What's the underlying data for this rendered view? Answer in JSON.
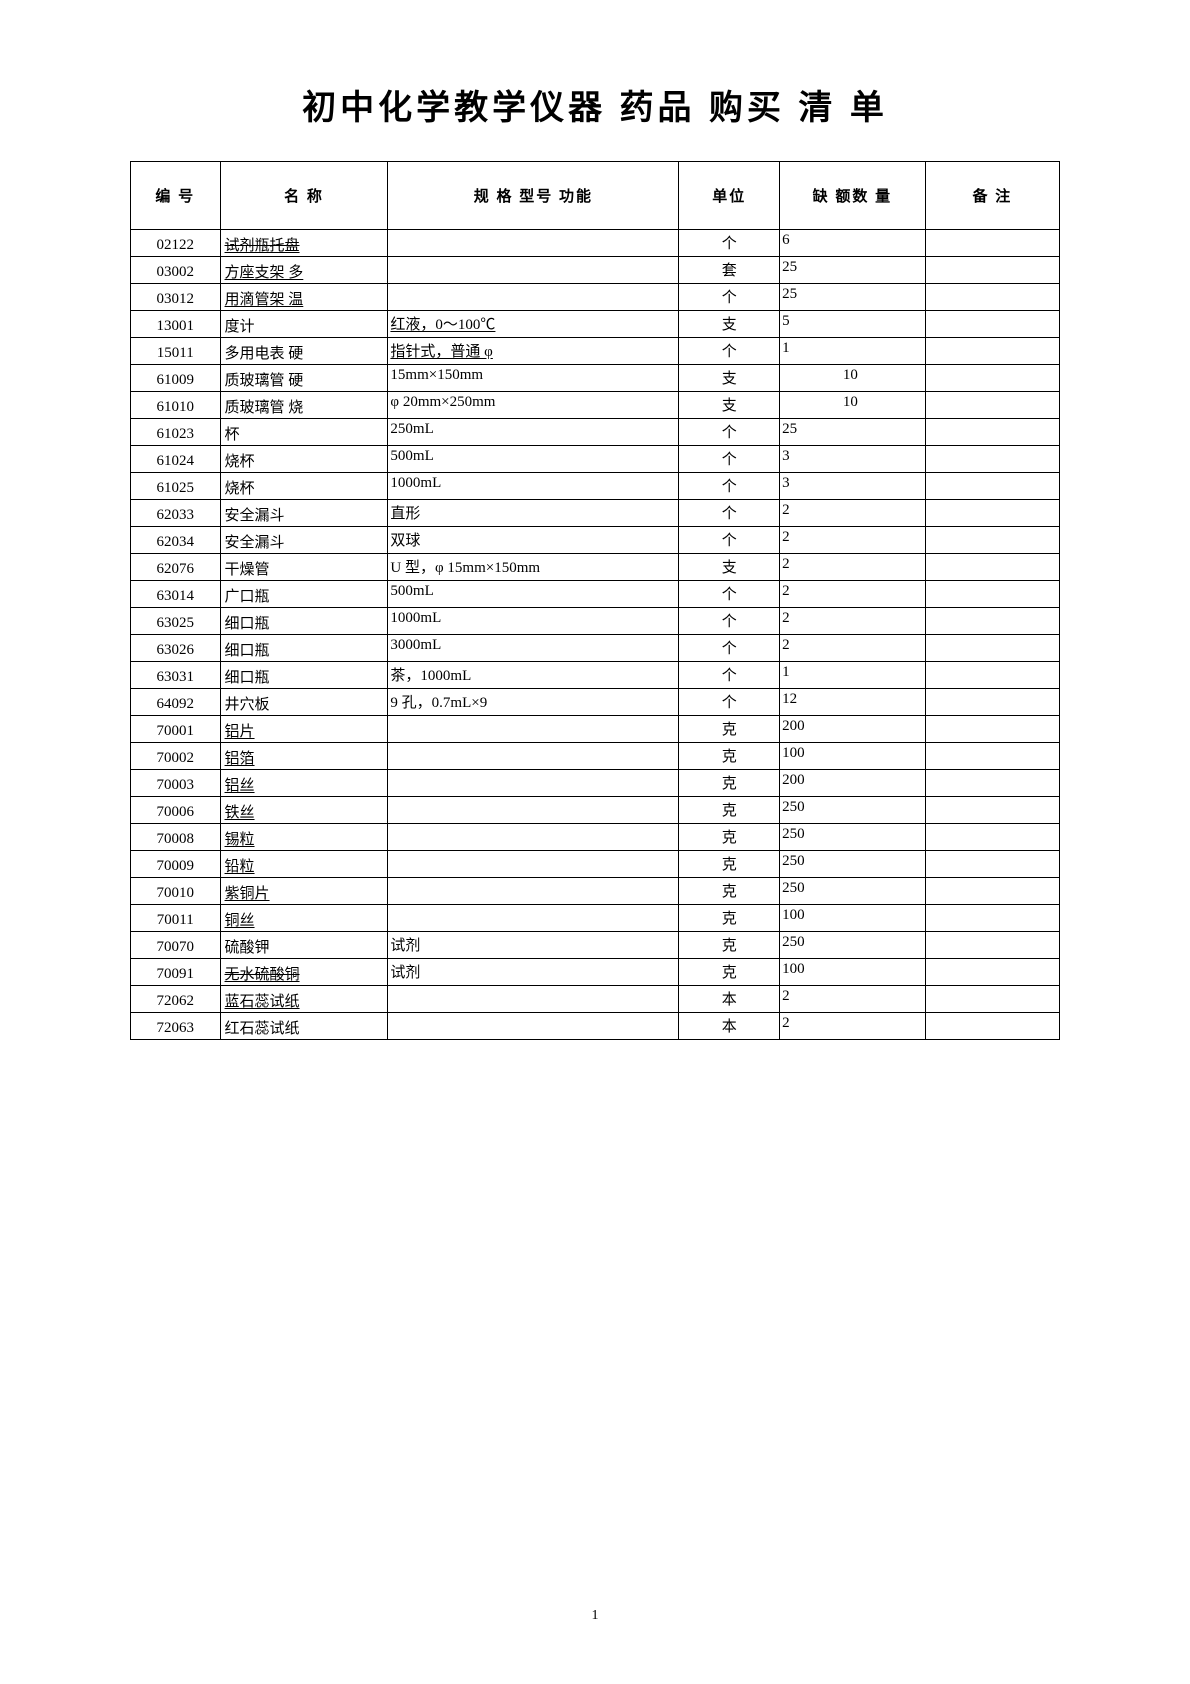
{
  "title": "初中化学教学仪器 药品 购买 清 单",
  "page_number": "1",
  "headers": {
    "id": "编 号",
    "name": "名 称",
    "spec": "规 格 型号 功能",
    "unit": "单位",
    "qty": "缺 额数 量",
    "note": "备 注"
  },
  "rows": [
    {
      "id": "02122",
      "name": "试剂瓶托盘",
      "spec": "",
      "unit": "个",
      "qty": "6",
      "name_strike": true,
      "name_underline": true,
      "spec_underline": false,
      "qty_centered": false
    },
    {
      "id": "03002",
      "name": "方座支架 多",
      "spec": "",
      "unit": "套",
      "qty": "25",
      "name_underline": true,
      "spec_underline": false,
      "qty_centered": false
    },
    {
      "id": "03012",
      "name": "用滴管架 温",
      "spec": "",
      "unit": "个",
      "qty": "25",
      "name_underline": true,
      "spec_underline": false,
      "qty_centered": false
    },
    {
      "id": "13001",
      "name": "度计",
      "spec": "红液，0～100℃",
      "unit": "支",
      "qty": "5",
      "name_underline": false,
      "spec_underline": true,
      "qty_centered": false
    },
    {
      "id": "15011",
      "name": "多用电表 硬",
      "spec": "指针式，普通 φ",
      "unit": "个",
      "qty": "1",
      "name_underline": false,
      "spec_underline": true,
      "qty_centered": false
    },
    {
      "id": "61009",
      "name": "质玻璃管 硬",
      "spec": "15mm×150mm",
      "unit": "支",
      "qty": "10",
      "name_underline": false,
      "spec_underline": false,
      "qty_centered": true
    },
    {
      "id": "61010",
      "name": "质玻璃管 烧",
      "spec": "φ 20mm×250mm",
      "unit": "支",
      "qty": "10",
      "name_underline": false,
      "spec_underline": false,
      "qty_centered": true
    },
    {
      "id": "61023",
      "name": "杯",
      "spec": "250mL",
      "unit": "个",
      "qty": "25",
      "name_underline": false,
      "spec_underline": false,
      "qty_centered": false
    },
    {
      "id": "61024",
      "name": "烧杯",
      "spec": "500mL",
      "unit": "个",
      "qty": "3",
      "name_underline": false,
      "spec_underline": false,
      "qty_centered": false
    },
    {
      "id": "61025",
      "name": "烧杯",
      "spec": "1000mL",
      "unit": "个",
      "qty": "3",
      "name_underline": false,
      "spec_underline": false,
      "qty_centered": false
    },
    {
      "id": "62033",
      "name": "安全漏斗",
      "spec": "直形",
      "unit": "个",
      "qty": "2",
      "name_underline": false,
      "spec_underline": false,
      "qty_centered": false
    },
    {
      "id": "62034",
      "name": "安全漏斗",
      "spec": "双球",
      "unit": "个",
      "qty": "2",
      "name_underline": false,
      "spec_underline": false,
      "qty_centered": false
    },
    {
      "id": "62076",
      "name": "干燥管",
      "spec": "U 型，φ 15mm×150mm",
      "unit": "支",
      "qty": "2",
      "name_underline": false,
      "spec_underline": false,
      "qty_centered": false
    },
    {
      "id": "63014",
      "name": "广口瓶",
      "spec": "500mL",
      "unit": "个",
      "qty": "2",
      "name_underline": false,
      "spec_underline": false,
      "qty_centered": false
    },
    {
      "id": "63025",
      "name": "细口瓶",
      "spec": "1000mL",
      "unit": "个",
      "qty": "2",
      "name_underline": false,
      "spec_underline": false,
      "qty_centered": false
    },
    {
      "id": "63026",
      "name": "细口瓶",
      "spec": "3000mL",
      "unit": "个",
      "qty": "2",
      "name_underline": false,
      "spec_underline": false,
      "qty_centered": false
    },
    {
      "id": "63031",
      "name": "细口瓶",
      "spec": "茶，1000mL",
      "unit": "个",
      "qty": "1",
      "name_underline": false,
      "spec_underline": false,
      "qty_centered": false
    },
    {
      "id": "64092",
      "name": "井穴板",
      "spec": "9 孔，0.7mL×9",
      "unit": "个",
      "qty": "12",
      "name_underline": false,
      "spec_underline": false,
      "qty_centered": false
    },
    {
      "id": "70001",
      "name": "铝片",
      "spec": "",
      "unit": "克",
      "qty": "200",
      "name_underline": true,
      "spec_underline": false,
      "qty_centered": false
    },
    {
      "id": "70002",
      "name": "铝箔",
      "spec": "",
      "unit": "克",
      "qty": "100",
      "name_underline": true,
      "spec_underline": false,
      "qty_centered": false
    },
    {
      "id": "70003",
      "name": "铝丝",
      "spec": "",
      "unit": "克",
      "qty": "200",
      "name_underline": true,
      "spec_underline": false,
      "qty_centered": false
    },
    {
      "id": "70006",
      "name": "铁丝",
      "spec": "",
      "unit": "克",
      "qty": "250",
      "name_underline": true,
      "spec_underline": false,
      "qty_centered": false
    },
    {
      "id": "70008",
      "name": "锡粒",
      "spec": "",
      "unit": "克",
      "qty": "250",
      "name_underline": true,
      "spec_underline": false,
      "qty_centered": false
    },
    {
      "id": "70009",
      "name": "铅粒",
      "spec": "",
      "unit": "克",
      "qty": "250",
      "name_underline": true,
      "spec_underline": false,
      "qty_centered": false
    },
    {
      "id": "70010",
      "name": "紫铜片",
      "spec": "",
      "unit": "克",
      "qty": "250",
      "name_underline": true,
      "spec_underline": false,
      "qty_centered": false
    },
    {
      "id": "70011",
      "name": "铜丝",
      "spec": "",
      "unit": "克",
      "qty": "100",
      "name_underline": true,
      "spec_underline": false,
      "qty_centered": false
    },
    {
      "id": "70070",
      "name": "硫酸钾",
      "spec": "试剂",
      "unit": "克",
      "qty": "250",
      "name_underline": false,
      "spec_underline": false,
      "qty_centered": false
    },
    {
      "id": "70091",
      "name": "无水硫酸铜",
      "spec": "试剂",
      "unit": "克",
      "qty": "100",
      "name_strike": true,
      "name_underline": true,
      "spec_underline": false,
      "qty_centered": false
    },
    {
      "id": "72062",
      "name": "蓝石蕊试纸",
      "spec": "",
      "unit": "本",
      "qty": "2",
      "name_underline": true,
      "spec_underline": false,
      "qty_centered": false
    },
    {
      "id": "72063",
      "name": "红石蕊试纸",
      "spec": "",
      "unit": "本",
      "qty": "2",
      "name_underline": false,
      "spec_underline": false,
      "qty_centered": false
    }
  ]
}
